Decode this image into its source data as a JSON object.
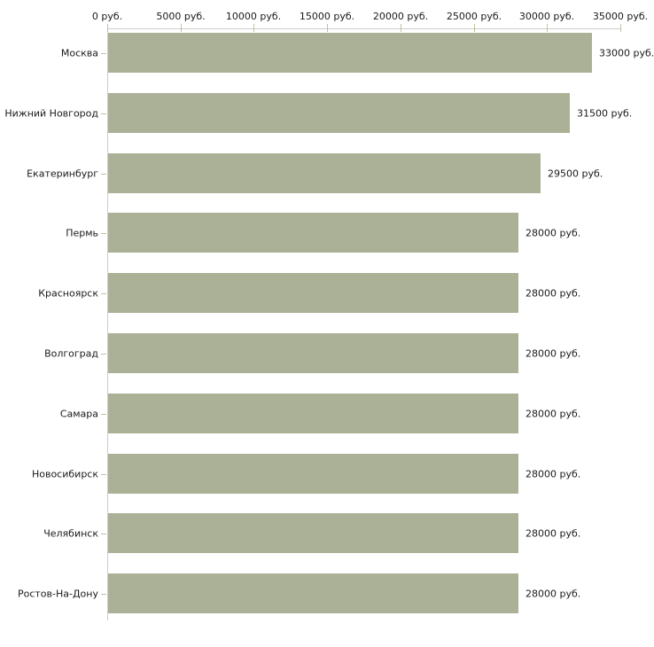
{
  "chart_data": {
    "type": "bar",
    "orientation": "horizontal",
    "title": "",
    "unit": "руб.",
    "categories": [
      "Москва",
      "Нижний Новгород",
      "Екатеринбург",
      "Пермь",
      "Красноярск",
      "Волгоград",
      "Самара",
      "Новосибирск",
      "Челябинск",
      "Ростов-На-Дону"
    ],
    "values": [
      33000,
      31500,
      29500,
      28000,
      28000,
      28000,
      28000,
      28000,
      28000,
      28000
    ],
    "value_labels": [
      "33000 руб.",
      "31500 руб.",
      "29500 руб.",
      "28000 руб.",
      "28000 руб.",
      "28000 руб.",
      "28000 руб.",
      "28000 руб.",
      "28000 руб.",
      "28000 руб."
    ],
    "x_axis": {
      "position": "top",
      "min": 0,
      "max": 35000,
      "tick_values": [
        0,
        5000,
        10000,
        15000,
        20000,
        25000,
        30000,
        35000
      ],
      "tick_labels": [
        "0 руб.",
        "5000 руб.",
        "10000 руб.",
        "15000 руб.",
        "20000 руб.",
        "25000 руб.",
        "30000 руб.",
        "35000 руб."
      ]
    },
    "grid": false,
    "legend": false,
    "colors": {
      "bar": "#aab196",
      "axis_line": "#cccccc",
      "tick": "#c1c1a0",
      "text": "#1a1a1a",
      "background": "#ffffff"
    }
  }
}
